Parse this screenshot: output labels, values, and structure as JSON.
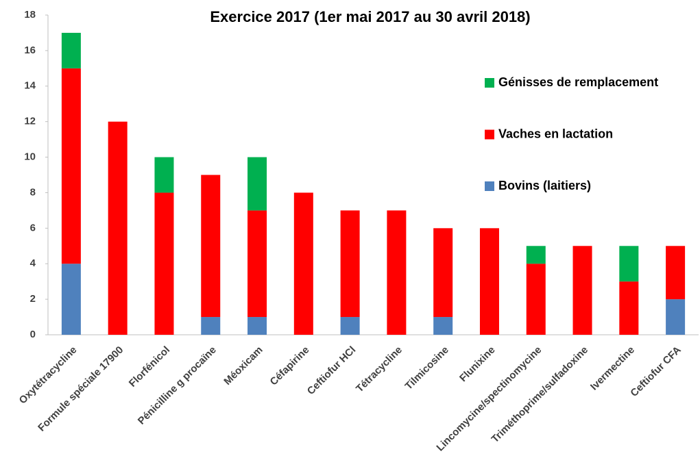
{
  "chart_data": {
    "type": "stacked_bar",
    "title": "Exercice 2017 (1er mai 2017 au 30 avril 2018)",
    "categories": [
      "Oxytétracycline",
      "Formule spéciale 17900",
      "Florfénicol",
      "Pénicilline g procaïne",
      "Méoxicam",
      "Céfapirine",
      "Ceftiofur HCl",
      "Tétracycline",
      "Tilmicosine",
      "Flunixine",
      "Lincomycine/spectinomycine",
      "Triméthoprime/sulfadoxine",
      "Ivermectine",
      "Ceftiofur CFA"
    ],
    "series": [
      {
        "name": "Bovins (laitiers)",
        "color": "#4f81bd",
        "values": [
          4,
          0,
          0,
          1,
          1,
          0,
          1,
          0,
          1,
          0,
          0,
          0,
          0,
          2
        ]
      },
      {
        "name": "Vaches en lactation",
        "color": "#ff0000",
        "values": [
          11,
          12,
          8,
          8,
          6,
          8,
          6,
          7,
          5,
          6,
          4,
          5,
          3,
          3
        ]
      },
      {
        "name": "Génisses de remplacement",
        "color": "#00b050",
        "values": [
          2,
          0,
          2,
          0,
          3,
          0,
          0,
          0,
          0,
          0,
          1,
          0,
          2,
          0
        ]
      }
    ],
    "ylim": [
      0,
      18
    ],
    "yticks": [
      0,
      2,
      4,
      6,
      8,
      10,
      12,
      14,
      16,
      18
    ],
    "grid": false,
    "legend": "right"
  }
}
